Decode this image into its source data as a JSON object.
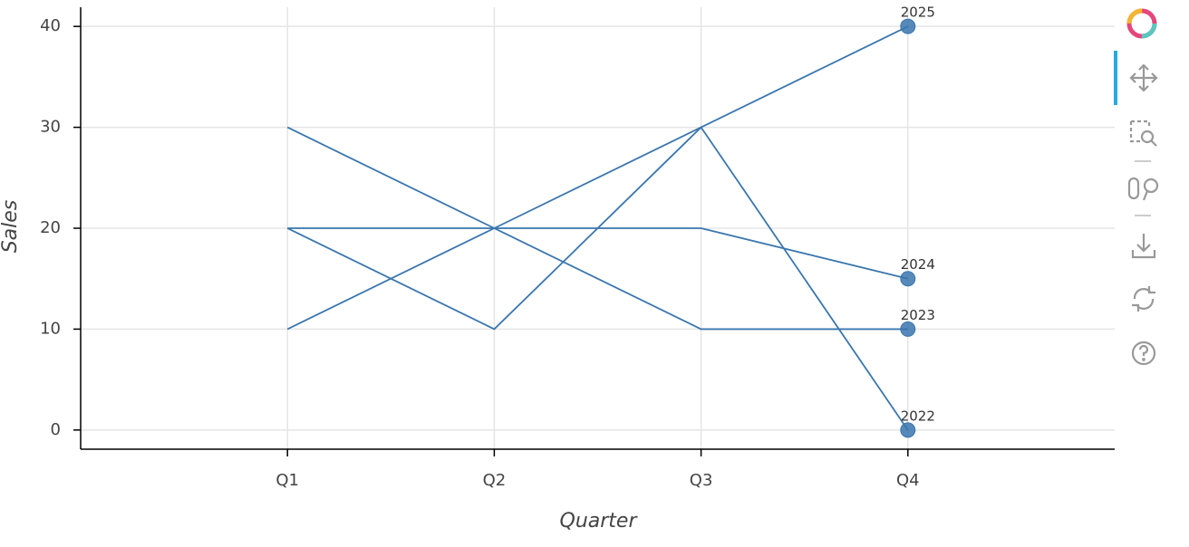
{
  "chart_data": {
    "type": "line",
    "x_label": "Quarter",
    "y_label": "Sales",
    "categories": [
      "Q1",
      "Q2",
      "Q3",
      "Q4"
    ],
    "series": [
      {
        "name": "2022",
        "color": "#3a76ae",
        "values": [
          20,
          10,
          30,
          0
        ]
      },
      {
        "name": "2023",
        "color": "#3a76ae",
        "values": [
          30,
          20,
          10,
          10
        ]
      },
      {
        "name": "2024",
        "color": "#3a76ae",
        "values": [
          20,
          20,
          20,
          15
        ]
      },
      {
        "name": "2025",
        "color": "#3a76ae",
        "values": [
          10,
          20,
          30,
          40
        ]
      }
    ],
    "ylim": [
      -1.9,
      41.9
    ],
    "yticks": [
      0,
      10,
      20,
      30,
      40
    ],
    "grid": true
  }
}
